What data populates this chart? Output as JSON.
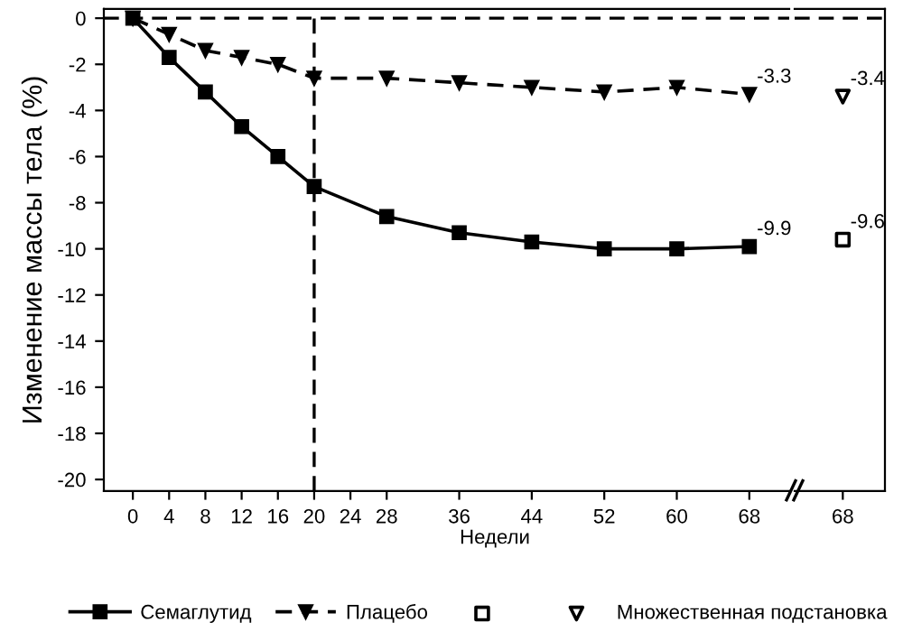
{
  "chart_data": [
    {
      "type": "line",
      "xlabel": "Недели",
      "ylabel": "Изменение массы тела (%)",
      "x": [
        0,
        4,
        8,
        12,
        16,
        20,
        28,
        36,
        44,
        52,
        60,
        68
      ],
      "series": [
        {
          "name": "Семаглутид",
          "color": "#000000",
          "marker": "square",
          "line_style": "solid",
          "values": [
            0,
            -1.7,
            -3.2,
            -4.7,
            -6.0,
            -7.3,
            -8.6,
            -9.3,
            -9.7,
            -10.0,
            -10.0,
            -9.9
          ],
          "value_labels": [
            null,
            null,
            null,
            null,
            null,
            null,
            null,
            null,
            null,
            null,
            null,
            "-9.9"
          ]
        },
        {
          "name": "Плацебо",
          "color": "#000000",
          "marker": "triangle",
          "line_style": "dashed",
          "values": [
            0,
            -0.7,
            -1.4,
            -1.7,
            -2.0,
            -2.6,
            -2.6,
            -2.8,
            -3.0,
            -3.2,
            -3.0,
            -3.3
          ],
          "value_labels": [
            null,
            null,
            null,
            null,
            null,
            null,
            null,
            null,
            null,
            null,
            null,
            "-3.3"
          ]
        }
      ],
      "xlim": [
        -3.2,
        72.4
      ],
      "xticks": [
        0,
        4,
        8,
        12,
        16,
        20,
        24,
        28,
        36,
        44,
        52,
        60,
        68
      ],
      "ylim": [
        -20.5,
        0.4
      ],
      "yticks": [
        0,
        -2,
        -4,
        -6,
        -8,
        -10,
        -12,
        -14,
        -16,
        -18,
        -20
      ],
      "ref_lines": [
        {
          "axis": "y",
          "value": 0,
          "line_style": "dashed"
        },
        {
          "axis": "x",
          "value": 20,
          "line_style": "dashed"
        }
      ],
      "legend": "bottom",
      "grid": false
    },
    {
      "type": "scatter",
      "categories": [
        "68"
      ],
      "series": [
        {
          "color": "#000000",
          "marker": "square",
          "values": [
            -9.6
          ],
          "value_labels": [
            "-9.6"
          ]
        },
        {
          "name": "Множественная подстановка",
          "color": "#000000",
          "marker": "triangle",
          "values": [
            -3.4
          ],
          "value_labels": [
            "-3.4"
          ]
        }
      ],
      "ylim": [
        -20.5,
        0.4
      ],
      "tick_labels": "x",
      "ref_lines": [
        {
          "axis": "y",
          "value": 0,
          "line_style": "dashed"
        }
      ],
      "grid": false
    }
  ]
}
